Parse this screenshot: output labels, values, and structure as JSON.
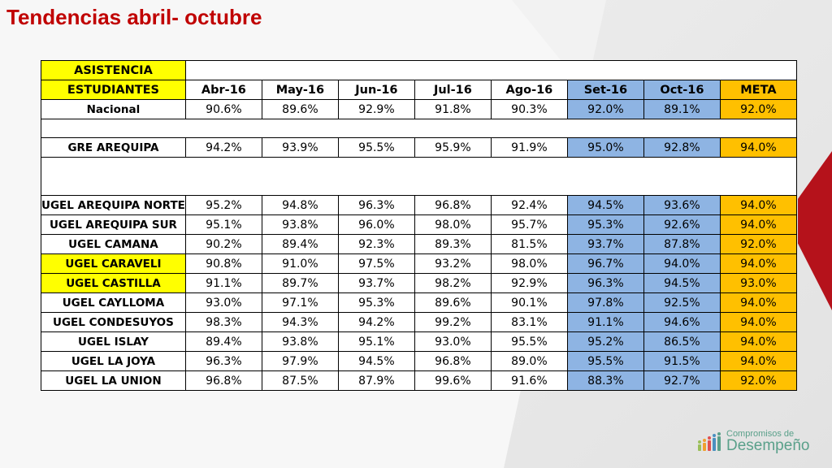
{
  "title": "Tendencias abril- octubre",
  "table": {
    "header1": "ASISTENCIA",
    "header2": "ESTUDIANTES",
    "months": [
      "Abr-16",
      "May-16",
      "Jun-16",
      "Jul-16",
      "Ago-16",
      "Set-16",
      "Oct-16"
    ],
    "meta_label": "META",
    "rows": [
      {
        "name": "Nacional",
        "values": [
          "90.6%",
          "89.6%",
          "92.9%",
          "91.8%",
          "90.3%",
          "92.0%",
          "89.1%"
        ],
        "meta": "92.0%"
      },
      {
        "name": "GRE AREQUIPA",
        "values": [
          "94.2%",
          "93.9%",
          "95.5%",
          "95.9%",
          "91.9%",
          "95.0%",
          "92.8%"
        ],
        "meta": "94.0%"
      },
      {
        "name": "UGEL AREQUIPA NORTE",
        "values": [
          "95.2%",
          "94.8%",
          "96.3%",
          "96.8%",
          "92.4%",
          "94.5%",
          "93.6%"
        ],
        "meta": "94.0%"
      },
      {
        "name": "UGEL AREQUIPA SUR",
        "values": [
          "95.1%",
          "93.8%",
          "96.0%",
          "98.0%",
          "95.7%",
          "95.3%",
          "92.6%"
        ],
        "meta": "94.0%"
      },
      {
        "name": "UGEL CAMANA",
        "values": [
          "90.2%",
          "89.4%",
          "92.3%",
          "89.3%",
          "81.5%",
          "93.7%",
          "87.8%"
        ],
        "meta": "92.0%"
      },
      {
        "name": "UGEL CARAVELI",
        "values": [
          "90.8%",
          "91.0%",
          "97.5%",
          "93.2%",
          "98.0%",
          "96.7%",
          "94.0%"
        ],
        "meta": "94.0%"
      },
      {
        "name": "UGEL CASTILLA",
        "values": [
          "91.1%",
          "89.7%",
          "93.7%",
          "98.2%",
          "92.9%",
          "96.3%",
          "94.5%"
        ],
        "meta": "93.0%"
      },
      {
        "name": "UGEL CAYLLOMA",
        "values": [
          "93.0%",
          "97.1%",
          "95.3%",
          "89.6%",
          "90.1%",
          "97.8%",
          "92.5%"
        ],
        "meta": "94.0%"
      },
      {
        "name": "UGEL CONDESUYOS",
        "values": [
          "98.3%",
          "94.3%",
          "94.2%",
          "99.2%",
          "83.1%",
          "91.1%",
          "94.6%"
        ],
        "meta": "94.0%"
      },
      {
        "name": "UGEL ISLAY",
        "values": [
          "89.4%",
          "93.8%",
          "95.1%",
          "93.0%",
          "95.5%",
          "95.2%",
          "86.5%"
        ],
        "meta": "94.0%"
      },
      {
        "name": "UGEL LA JOYA",
        "values": [
          "96.3%",
          "97.9%",
          "94.5%",
          "96.8%",
          "89.0%",
          "95.5%",
          "91.5%"
        ],
        "meta": "94.0%"
      },
      {
        "name": "UGEL LA UNION",
        "values": [
          "96.8%",
          "87.5%",
          "87.9%",
          "99.6%",
          "91.6%",
          "88.3%",
          "92.7%"
        ],
        "meta": "92.0%"
      }
    ],
    "highlighted_rows": [
      "UGEL CARAVELI",
      "UGEL CASTILLA"
    ],
    "colors": {
      "highlight": "#ffff00",
      "recent_months": "#8eb4e3",
      "meta": "#ffc000"
    }
  },
  "logo": {
    "line1": "Compromisos de",
    "line2": "Desempeño",
    "icon": "bar-people-icon"
  }
}
